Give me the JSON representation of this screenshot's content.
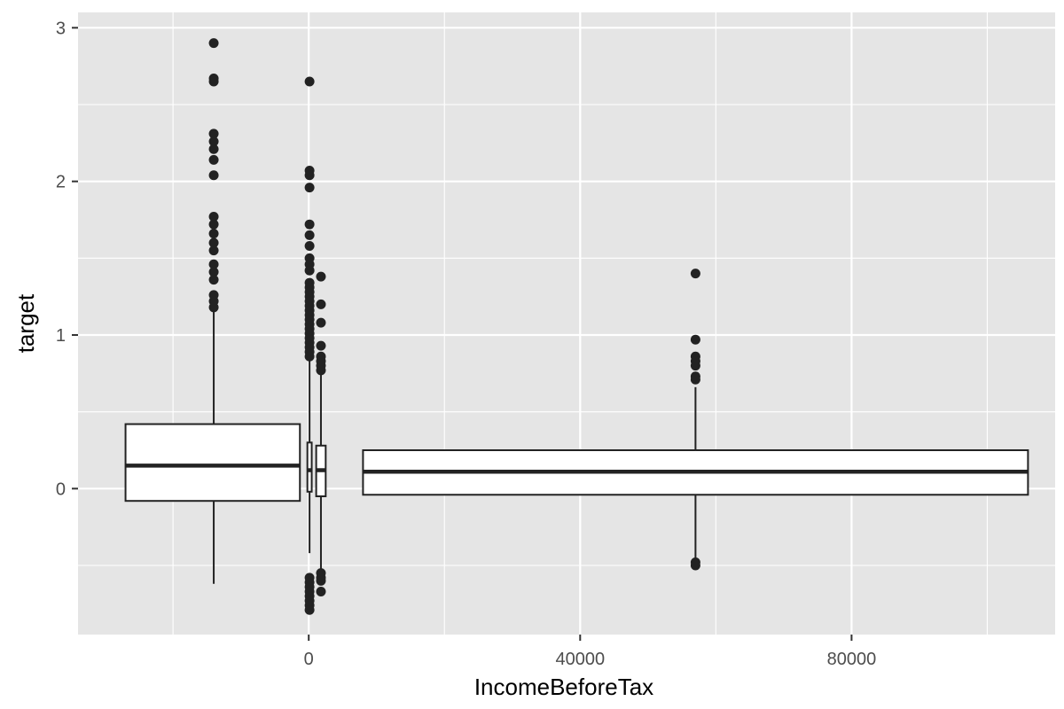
{
  "chart_data": {
    "type": "box",
    "xlabel": "IncomeBeforeTax",
    "ylabel": "target",
    "xlim": [
      -34000,
      110000
    ],
    "ylim": [
      -0.95,
      3.1
    ],
    "x_ticks": [
      0,
      40000,
      80000
    ],
    "x_tick_labels": [
      "0",
      "40000",
      "80000"
    ],
    "x_minor_ticks": [
      -20000,
      20000,
      60000,
      100000
    ],
    "y_ticks": [
      0,
      1,
      2,
      3
    ],
    "y_tick_labels": [
      "0",
      "1",
      "2",
      "3"
    ],
    "y_minor_ticks": [
      -0.5,
      0.5,
      1.5,
      2.5
    ],
    "grid": true,
    "colors": {
      "panel": "#e5e5e5",
      "grid": "#ffffff",
      "box_fill": "#ffffff",
      "box_line": "#222222",
      "outlier": "#222222"
    },
    "boxes": [
      {
        "x_center": -14000,
        "x_min": -27000,
        "x_max": -1300,
        "q1": -0.08,
        "median": 0.15,
        "q3": 0.42,
        "whisker_low": -0.62,
        "whisker_high": 1.2,
        "outliers": [
          2.9,
          2.67,
          2.65,
          2.31,
          2.26,
          2.21,
          2.14,
          2.04,
          1.77,
          1.72,
          1.66,
          1.6,
          1.55,
          1.46,
          1.41,
          1.36,
          1.26,
          1.22,
          1.18
        ]
      },
      {
        "x_center": 120,
        "x_min": -200,
        "x_max": 440,
        "q1": -0.02,
        "median": 0.12,
        "q3": 0.3,
        "whisker_low": -0.42,
        "whisker_high": 0.85,
        "outliers": [
          2.65,
          2.07,
          2.04,
          1.96,
          1.72,
          1.65,
          1.58,
          1.5,
          1.46,
          1.42,
          1.34,
          1.31,
          1.28,
          1.25,
          1.22,
          1.19,
          1.16,
          1.13,
          1.1,
          1.07,
          1.04,
          1.01,
          0.98,
          0.95,
          0.92,
          0.89,
          0.86,
          -0.58,
          -0.61,
          -0.64,
          -0.67,
          -0.7,
          -0.73,
          -0.76,
          -0.79
        ]
      },
      {
        "x_center": 1800,
        "x_min": 1100,
        "x_max": 2500,
        "q1": -0.05,
        "median": 0.12,
        "q3": 0.28,
        "whisker_low": -0.55,
        "whisker_high": 0.75,
        "outliers": [
          1.38,
          1.2,
          1.08,
          0.93,
          0.86,
          0.83,
          0.8,
          0.77,
          -0.55,
          -0.58,
          -0.6,
          -0.67
        ]
      },
      {
        "x_center": 57000,
        "x_min": 8000,
        "x_max": 106000,
        "q1": -0.04,
        "median": 0.11,
        "q3": 0.25,
        "whisker_low": -0.47,
        "whisker_high": 0.66,
        "outliers": [
          1.4,
          0.97,
          0.86,
          0.83,
          0.8,
          0.73,
          0.71,
          -0.48,
          -0.5
        ]
      }
    ]
  }
}
